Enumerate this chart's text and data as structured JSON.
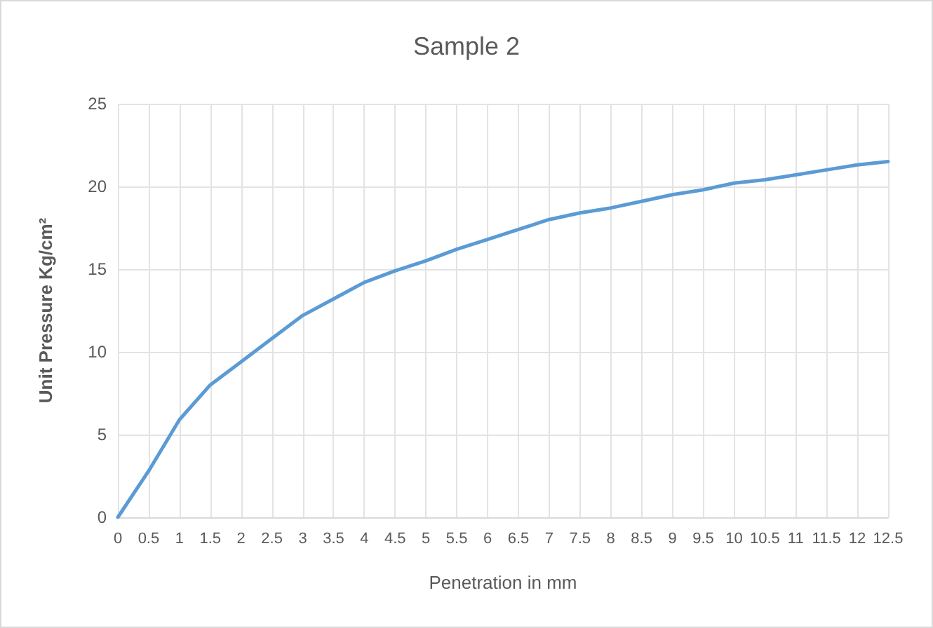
{
  "chart_data": {
    "type": "line",
    "title": "Sample 2",
    "xlabel": "Penetration in mm",
    "ylabel": "Unit Pressure Kg/cm²",
    "x": [
      0,
      0.5,
      1,
      1.5,
      2,
      2.5,
      3,
      3.5,
      4,
      4.5,
      5,
      5.5,
      6,
      6.5,
      7,
      7.5,
      8,
      8.5,
      9,
      9.5,
      10,
      10.5,
      11,
      11.5,
      12,
      12.5
    ],
    "series": [
      {
        "color": "#5b9bd5",
        "values": [
          0,
          2.8,
          5.9,
          8.0,
          9.4,
          10.8,
          12.2,
          13.2,
          14.2,
          14.9,
          15.5,
          16.2,
          16.8,
          17.4,
          18.0,
          18.4,
          18.7,
          19.1,
          19.5,
          19.8,
          20.2,
          20.4,
          20.7,
          21.0,
          21.3,
          21.5
        ]
      }
    ],
    "xlim": [
      0,
      12.5
    ],
    "xticks": [
      0,
      0.5,
      1,
      1.5,
      2,
      2.5,
      3,
      3.5,
      4,
      4.5,
      5,
      5.5,
      6,
      6.5,
      7,
      7.5,
      8,
      8.5,
      9,
      9.5,
      10,
      10.5,
      11,
      11.5,
      12,
      12.5
    ],
    "ylim": [
      0,
      25
    ],
    "yticks": [
      0,
      5,
      10,
      15,
      20,
      25
    ],
    "grid": true,
    "marker": "none",
    "line_style": "solid"
  }
}
